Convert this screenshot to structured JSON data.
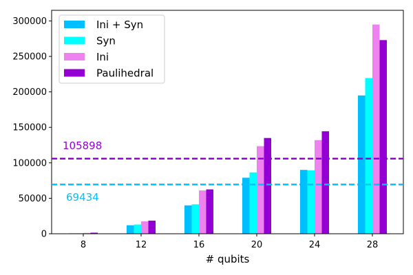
{
  "chart_data": {
    "type": "bar",
    "title": "",
    "xlabel": "# qubits",
    "ylabel": "",
    "categories": [
      "8",
      "12",
      "16",
      "20",
      "24",
      "28"
    ],
    "ylim": [
      0,
      315000
    ],
    "yticks": [
      0,
      50000,
      100000,
      150000,
      200000,
      250000,
      300000
    ],
    "ytick_labels": [
      "0",
      "50000",
      "100000",
      "150000",
      "200000",
      "250000",
      "300000"
    ],
    "grid": false,
    "legend_position": "top-left",
    "series": [
      {
        "name": "Ini + Syn",
        "color": "#00bfff",
        "values": [
          600,
          12000,
          40000,
          79000,
          90000,
          195000
        ]
      },
      {
        "name": "Syn",
        "color": "#00ffff",
        "values": [
          700,
          13000,
          41500,
          86500,
          89500,
          219500
        ]
      },
      {
        "name": "Ini",
        "color": "#ee82ee",
        "values": [
          1100,
          17500,
          61000,
          123500,
          132000,
          295000
        ]
      },
      {
        "name": "Paulihedral",
        "color": "#9400d3",
        "values": [
          1500,
          18500,
          62500,
          135000,
          144500,
          273000
        ]
      }
    ],
    "reference_lines": [
      {
        "value": 105898,
        "label": "105898",
        "color": "#9400d3",
        "style": "dashed"
      },
      {
        "value": 69434,
        "label": "69434",
        "color": "#00bfff",
        "style": "dashed"
      }
    ]
  }
}
